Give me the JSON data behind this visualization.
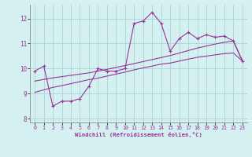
{
  "xlabel": "Windchill (Refroidissement éolien,°C)",
  "ylabel": "",
  "bg_color": "#d4f0f0",
  "line_color": "#993399",
  "grid_color": "#b0d8d8",
  "x_data": [
    0,
    1,
    2,
    3,
    4,
    5,
    6,
    7,
    8,
    9,
    10,
    11,
    12,
    13,
    14,
    15,
    16,
    17,
    18,
    19,
    20,
    21,
    22,
    23
  ],
  "y_main": [
    9.9,
    10.1,
    8.5,
    8.7,
    8.7,
    8.8,
    9.3,
    10.0,
    9.9,
    9.9,
    10.0,
    11.8,
    11.9,
    12.25,
    11.8,
    10.7,
    11.2,
    11.45,
    11.2,
    11.35,
    11.25,
    11.3,
    11.1,
    10.3
  ],
  "y_reg1": [
    9.05,
    9.15,
    9.25,
    9.32,
    9.4,
    9.48,
    9.56,
    9.62,
    9.7,
    9.78,
    9.86,
    9.95,
    10.03,
    10.1,
    10.18,
    10.22,
    10.3,
    10.38,
    10.45,
    10.5,
    10.55,
    10.6,
    10.62,
    10.3
  ],
  "y_reg2": [
    9.5,
    9.57,
    9.63,
    9.68,
    9.73,
    9.78,
    9.83,
    9.9,
    9.97,
    10.05,
    10.12,
    10.2,
    10.28,
    10.36,
    10.44,
    10.52,
    10.62,
    10.72,
    10.82,
    10.9,
    10.98,
    11.05,
    11.1,
    10.3
  ],
  "ylim": [
    7.85,
    12.55
  ],
  "xlim": [
    -0.5,
    23.5
  ],
  "yticks": [
    8,
    9,
    10,
    11,
    12
  ],
  "xticks": [
    0,
    1,
    2,
    3,
    4,
    5,
    6,
    7,
    8,
    9,
    10,
    11,
    12,
    13,
    14,
    15,
    16,
    17,
    18,
    19,
    20,
    21,
    22,
    23
  ],
  "figsize": [
    3.2,
    2.0
  ],
  "dpi": 100
}
